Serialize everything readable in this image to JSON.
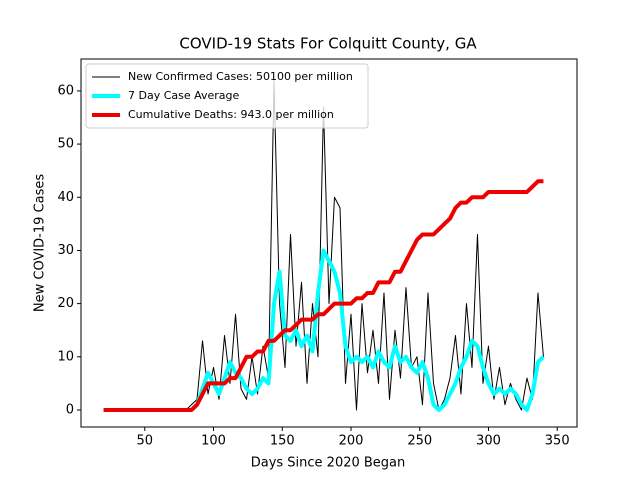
{
  "chart_data": {
    "type": "line",
    "title": "COVID-19 Stats For Colquitt County, GA",
    "xlabel": "Days Since 2020 Began",
    "ylabel": "New COVID-19 Cases",
    "legend": "upper left",
    "xlim": [
      3.6,
      364.4
    ],
    "ylim": [
      -3.2,
      66
    ],
    "xticks": [
      50,
      100,
      150,
      200,
      250,
      300,
      350
    ],
    "yticks": [
      0,
      10,
      20,
      30,
      40,
      50,
      60
    ],
    "x": [
      20,
      24,
      28,
      32,
      36,
      40,
      44,
      48,
      52,
      56,
      60,
      64,
      68,
      72,
      76,
      80,
      84,
      88,
      92,
      96,
      100,
      104,
      108,
      112,
      116,
      120,
      124,
      128,
      132,
      136,
      140,
      144,
      148,
      152,
      156,
      160,
      164,
      168,
      172,
      176,
      180,
      184,
      188,
      192,
      196,
      200,
      204,
      208,
      212,
      216,
      220,
      224,
      228,
      232,
      236,
      240,
      244,
      248,
      252,
      256,
      260,
      264,
      268,
      272,
      276,
      280,
      284,
      288,
      292,
      296,
      300,
      304,
      308,
      312,
      316,
      320,
      324,
      328,
      332,
      336,
      340
    ],
    "series": [
      {
        "name": "New Confirmed Cases: 50100 per million",
        "color": "#000000",
        "width": 1,
        "values": [
          0,
          0,
          0,
          0,
          0,
          0,
          0,
          0,
          0,
          0,
          0,
          0,
          0,
          0,
          0,
          0,
          1,
          2,
          13,
          3,
          8,
          2,
          14,
          5,
          18,
          4,
          2,
          10,
          3,
          12,
          6,
          62,
          20,
          8,
          33,
          12,
          24,
          5,
          20,
          10,
          57,
          20,
          40,
          38,
          5,
          18,
          0,
          20,
          7,
          15,
          5,
          22,
          2,
          15,
          6,
          23,
          8,
          10,
          1,
          22,
          5,
          0,
          2,
          6,
          14,
          3,
          20,
          8,
          33,
          5,
          12,
          2,
          8,
          1,
          5,
          2,
          0,
          6,
          2,
          22,
          10
        ]
      },
      {
        "name": "7 Day Case Average",
        "color": "#00ffff",
        "width": 4,
        "values": [
          0,
          0,
          0,
          0,
          0,
          0,
          0,
          0,
          0,
          0,
          0,
          0,
          0,
          0,
          0,
          0,
          0,
          1,
          4,
          7,
          5,
          3,
          6,
          9,
          7,
          6,
          4,
          3,
          4,
          6,
          5,
          20,
          26,
          14,
          13,
          15,
          12,
          14,
          11,
          22,
          30,
          28,
          26,
          22,
          12,
          9,
          10,
          9,
          10,
          8,
          11,
          9,
          8,
          12,
          9,
          10,
          8,
          7,
          9,
          6,
          1,
          0,
          1,
          3,
          5,
          8,
          10,
          13,
          12,
          8,
          5,
          3,
          4,
          3,
          4,
          3,
          1,
          0,
          3,
          9,
          10
        ]
      },
      {
        "name": "Cumulative Deaths: 943.0 per million",
        "color": "#ee0000",
        "width": 4,
        "values": [
          0,
          0,
          0,
          0,
          0,
          0,
          0,
          0,
          0,
          0,
          0,
          0,
          0,
          0,
          0,
          0,
          0,
          1,
          3,
          5,
          5,
          5,
          5,
          6,
          6,
          8,
          10,
          10,
          11,
          11,
          13,
          13,
          14,
          15,
          15,
          16,
          17,
          17,
          17,
          18,
          18,
          19,
          20,
          20,
          20,
          20,
          21,
          21,
          22,
          22,
          24,
          24,
          24,
          26,
          26,
          28,
          30,
          32,
          33,
          33,
          33,
          34,
          35,
          36,
          38,
          39,
          39,
          40,
          40,
          40,
          41,
          41,
          41,
          41,
          41,
          41,
          41,
          41,
          42,
          43,
          43
        ]
      }
    ]
  }
}
